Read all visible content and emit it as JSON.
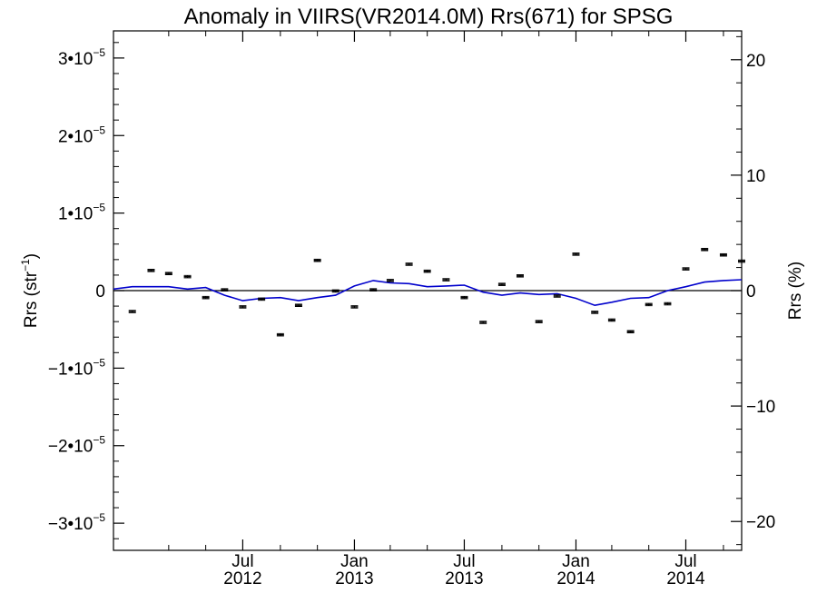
{
  "chart_data": {
    "type": "scatter",
    "title": "Anomaly in VIIRS(VR2014.0M) Rrs(671) for SPSG",
    "ylabel_left": "Rrs (str",
    "ylabel_left_sup": "−1",
    "ylabel_left_suffix": ")",
    "ylabel_right": "Rrs (%)",
    "x_range": [
      "2011-12-01",
      "2014-10-01"
    ],
    "ylim_left": [
      -3.35e-05,
      3.35e-05
    ],
    "ylim_right": [
      -22.5,
      22.5
    ],
    "grid": false,
    "legend": "none",
    "colors": {
      "points": "#000000",
      "smooth_line": "#0000cc",
      "zero_line": "#000000"
    },
    "x_ticks": [
      {
        "date": "2012-07-01",
        "label1": "Jul",
        "label2": "2012"
      },
      {
        "date": "2013-01-01",
        "label1": "Jan",
        "label2": "2013"
      },
      {
        "date": "2013-07-01",
        "label1": "Jul",
        "label2": "2013"
      },
      {
        "date": "2014-01-01",
        "label1": "Jan",
        "label2": "2014"
      },
      {
        "date": "2014-07-01",
        "label1": "Jul",
        "label2": "2014"
      }
    ],
    "x_minor_ticks": [
      "2012-03-01",
      "2012-05-01",
      "2012-09-01",
      "2012-11-01",
      "2013-03-01",
      "2013-05-01",
      "2013-09-01",
      "2013-11-01",
      "2014-03-01",
      "2014-05-01",
      "2014-09-01"
    ],
    "y_ticks_left": [
      {
        "value": 3e-05,
        "base": "3•10",
        "exp": "−5"
      },
      {
        "value": 2e-05,
        "base": "2•10",
        "exp": "−5"
      },
      {
        "value": 1e-05,
        "base": "1•10",
        "exp": "−5"
      },
      {
        "value": 0,
        "base": "0",
        "exp": ""
      },
      {
        "value": -1e-05,
        "base": "−1•10",
        "exp": "−5"
      },
      {
        "value": -2e-05,
        "base": "−2•10",
        "exp": "−5"
      },
      {
        "value": -3e-05,
        "base": "−3•10",
        "exp": "−5"
      }
    ],
    "y_ticks_right": [
      {
        "value": 20,
        "label": "20"
      },
      {
        "value": 10,
        "label": "10"
      },
      {
        "value": 0,
        "label": "0"
      },
      {
        "value": -10,
        "label": "−10"
      },
      {
        "value": -20,
        "label": "−20"
      }
    ],
    "points": {
      "x": [
        "2012-01-01",
        "2012-02-01",
        "2012-03-01",
        "2012-04-01",
        "2012-05-01",
        "2012-06-01",
        "2012-07-01",
        "2012-08-01",
        "2012-09-01",
        "2012-10-01",
        "2012-11-01",
        "2012-12-01",
        "2013-01-01",
        "2013-02-01",
        "2013-03-01",
        "2013-04-01",
        "2013-05-01",
        "2013-06-01",
        "2013-07-01",
        "2013-08-01",
        "2013-09-01",
        "2013-10-01",
        "2013-11-01",
        "2013-12-01",
        "2014-01-01",
        "2014-02-01",
        "2014-03-01",
        "2014-04-01",
        "2014-05-01",
        "2014-06-01",
        "2014-07-01",
        "2014-08-01",
        "2014-09-01",
        "2014-10-01"
      ],
      "y": [
        -2.7e-06,
        2.6e-06,
        2.2e-06,
        1.8e-06,
        -9e-07,
        1e-07,
        -2.1e-06,
        -1.1e-06,
        -5.7e-06,
        -1.9e-06,
        3.9e-06,
        -5e-08,
        -2.1e-06,
        1e-07,
        1.3e-06,
        3.4e-06,
        2.5e-06,
        1.4e-06,
        -9e-07,
        -4.1e-06,
        8e-07,
        1.9e-06,
        -4e-06,
        -7e-07,
        4.7e-06,
        -2.8e-06,
        -3.8e-06,
        -5.3e-06,
        -1.8e-06,
        -1.7e-06,
        2.8e-06,
        5.3e-06,
        4.6e-06,
        3.8e-06
      ],
      "error": [
        1.5e-07,
        1.5e-07,
        1.5e-07,
        1.5e-07,
        1.5e-07,
        1.5e-07,
        1.5e-07,
        1.5e-07,
        1.5e-07,
        1.5e-07,
        1.5e-07,
        1.5e-07,
        1.5e-07,
        1.5e-07,
        1.5e-07,
        1.5e-07,
        1.5e-07,
        1.5e-07,
        1.5e-07,
        1.5e-07,
        1.5e-07,
        1.5e-07,
        1.5e-07,
        1.5e-07,
        1.5e-07,
        1.5e-07,
        1.5e-07,
        1.5e-07,
        1.5e-07,
        1.5e-07,
        1.5e-07,
        1.5e-07,
        1.5e-07,
        1.5e-07
      ]
    },
    "smooth_line": {
      "x": [
        "2011-12-01",
        "2012-01-01",
        "2012-02-01",
        "2012-03-01",
        "2012-04-01",
        "2012-05-01",
        "2012-06-01",
        "2012-07-01",
        "2012-08-01",
        "2012-09-01",
        "2012-10-01",
        "2012-11-01",
        "2012-12-01",
        "2013-01-01",
        "2013-02-01",
        "2013-03-01",
        "2013-04-01",
        "2013-05-01",
        "2013-06-01",
        "2013-07-01",
        "2013-08-01",
        "2013-09-01",
        "2013-10-01",
        "2013-11-01",
        "2013-12-01",
        "2014-01-01",
        "2014-02-01",
        "2014-03-01",
        "2014-04-01",
        "2014-05-01",
        "2014-06-01",
        "2014-07-01",
        "2014-08-01",
        "2014-09-01",
        "2014-10-01"
      ],
      "y": [
        2e-07,
        5e-07,
        5e-07,
        5e-07,
        2e-07,
        4e-07,
        -6e-07,
        -1.3e-06,
        -1e-06,
        -9e-07,
        -1.3e-06,
        -9e-07,
        -6e-07,
        6e-07,
        1.3e-06,
        1e-06,
        9e-07,
        5e-07,
        6e-07,
        7e-07,
        -2e-07,
        -6e-07,
        -3e-07,
        -5e-07,
        -4e-07,
        -1e-06,
        -1.9e-06,
        -1.5e-06,
        -1e-06,
        -9e-07,
        0.0,
        5e-07,
        1.1e-06,
        1.3e-06,
        1.4e-06
      ]
    }
  }
}
